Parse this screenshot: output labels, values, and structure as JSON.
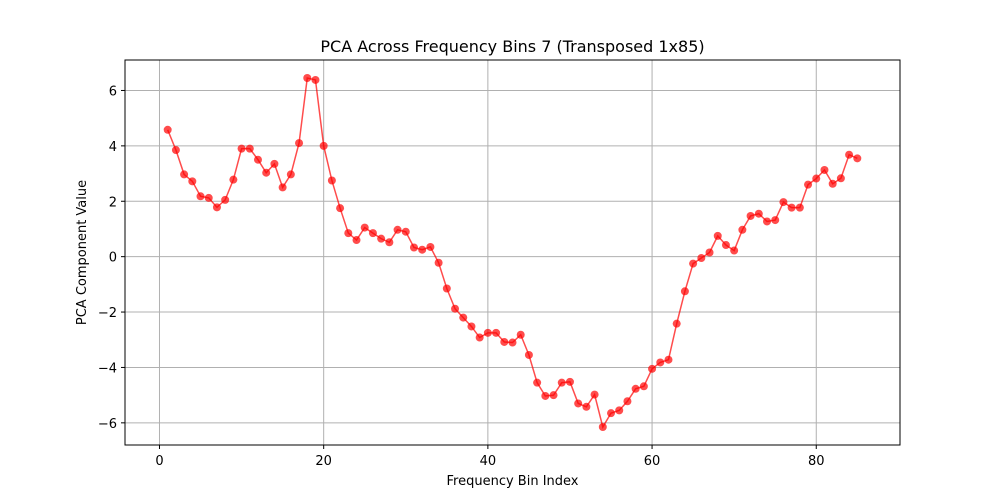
{
  "chart_data": {
    "type": "line",
    "title": "PCA Across Frequency Bins 7 (Transposed 1x85)",
    "xlabel": "Frequency Bin Index",
    "ylabel": "PCA Component Value",
    "xlim": [
      -4.2,
      90.2
    ],
    "ylim": [
      -6.8,
      7.1
    ],
    "xticks": [
      0,
      20,
      40,
      60,
      80
    ],
    "yticks": [
      -6,
      -4,
      -2,
      0,
      2,
      4,
      6
    ],
    "xtick_labels": [
      "0",
      "20",
      "40",
      "60",
      "80"
    ],
    "ytick_labels": [
      "−6",
      "−4",
      "−2",
      "0",
      "2",
      "4",
      "6"
    ],
    "grid": true,
    "series": [
      {
        "color": "#ff0000",
        "opacity": 0.7,
        "marker": "circle",
        "x": [
          1,
          2,
          3,
          4,
          5,
          6,
          7,
          8,
          9,
          10,
          11,
          12,
          13,
          14,
          15,
          16,
          17,
          18,
          19,
          20,
          21,
          22,
          23,
          24,
          25,
          26,
          27,
          28,
          29,
          30,
          31,
          32,
          33,
          34,
          35,
          36,
          37,
          38,
          39,
          40,
          41,
          42,
          43,
          44,
          45,
          46,
          47,
          48,
          49,
          50,
          51,
          52,
          53,
          54,
          55,
          56,
          57,
          58,
          59,
          60,
          61,
          62,
          63,
          64,
          65,
          66,
          67,
          68,
          69,
          70,
          71,
          72,
          73,
          74,
          75,
          76,
          77,
          78,
          79,
          80,
          81,
          82,
          83,
          84,
          85
        ],
        "values": [
          4.58,
          3.85,
          2.97,
          2.72,
          2.18,
          2.12,
          1.78,
          2.05,
          2.78,
          3.9,
          3.9,
          3.5,
          3.03,
          3.35,
          2.5,
          2.97,
          4.1,
          6.45,
          6.38,
          4.0,
          2.75,
          1.75,
          0.85,
          0.6,
          1.05,
          0.85,
          0.65,
          0.52,
          0.97,
          0.9,
          0.33,
          0.25,
          0.35,
          -0.22,
          -1.15,
          -1.88,
          -2.2,
          -2.52,
          -2.92,
          -2.75,
          -2.75,
          -3.08,
          -3.1,
          -2.82,
          -3.55,
          -4.55,
          -5.03,
          -5.0,
          -4.55,
          -4.52,
          -5.3,
          -5.42,
          -4.98,
          -6.15,
          -5.65,
          -5.55,
          -5.22,
          -4.77,
          -4.68,
          -4.05,
          -3.82,
          -3.72,
          -2.42,
          -1.25,
          -0.25,
          -0.05,
          0.15,
          0.75,
          0.42,
          0.22,
          0.97,
          1.47,
          1.55,
          1.27,
          1.32,
          1.97,
          1.77,
          1.77,
          2.6,
          2.82,
          3.13,
          2.63,
          2.83,
          3.68,
          3.55
        ]
      }
    ]
  }
}
